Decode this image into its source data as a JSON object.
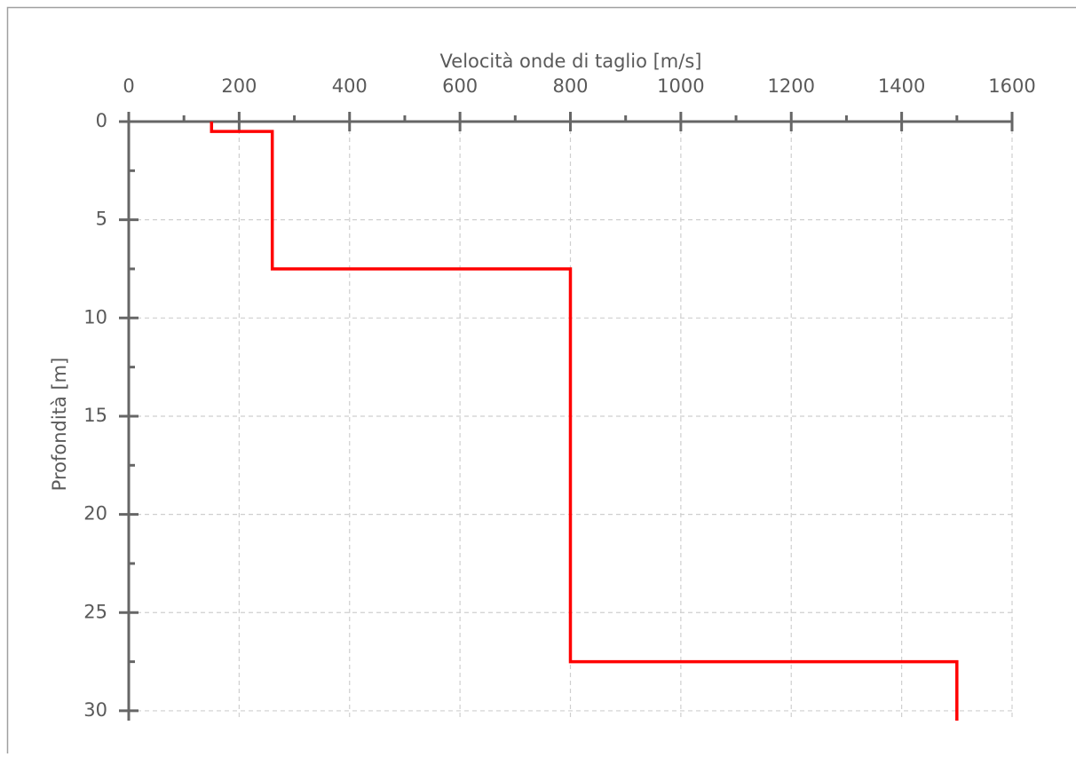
{
  "chart_data": {
    "type": "line",
    "title": "Velocità onde di taglio [m/s]",
    "y_label": "Profondità [m]",
    "x": [
      150,
      150,
      260,
      260,
      800,
      800,
      1500,
      1500
    ],
    "series": [
      {
        "color": "#ff0000",
        "values": [
          0,
          0.5,
          0.5,
          7.5,
          7.5,
          27.5,
          27.5,
          30.5
        ]
      }
    ],
    "xlim": [
      0,
      1600
    ],
    "xticks": [
      0,
      200,
      400,
      600,
      800,
      1000,
      1200,
      1400,
      1600
    ],
    "x_minor_ticks": [
      100,
      300,
      500,
      700,
      900,
      1100,
      1300,
      1500
    ],
    "ylim": [
      0,
      30.5
    ],
    "yticks": [
      0,
      5,
      10,
      15,
      20,
      25,
      30
    ],
    "y_minor_ticks": [
      2.5,
      7.5,
      12.5,
      17.5,
      22.5,
      27.5
    ],
    "y_inverted": true,
    "x_axis_top": true,
    "grid": true
  }
}
